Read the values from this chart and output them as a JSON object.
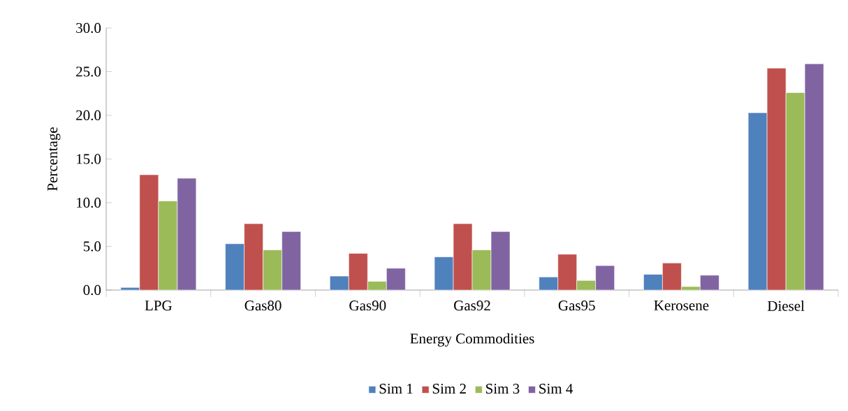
{
  "chart_data": {
    "type": "bar",
    "xlabel": "Energy Commodities",
    "ylabel": "Percentage",
    "categories": [
      "LPG",
      "Gas80",
      "Gas90",
      "Gas92",
      "Gas95",
      "Kerosene",
      "Diesel"
    ],
    "series": [
      {
        "name": "Sim 1",
        "color": "#4f81bd",
        "values": [
          0.3,
          5.3,
          1.6,
          3.8,
          1.5,
          1.8,
          20.3
        ]
      },
      {
        "name": "Sim 2",
        "color": "#c0504d",
        "values": [
          13.2,
          7.6,
          4.2,
          7.6,
          4.1,
          3.1,
          25.4
        ]
      },
      {
        "name": "Sim 3",
        "color": "#9bbb59",
        "values": [
          10.2,
          4.6,
          1.0,
          4.6,
          1.1,
          0.4,
          22.6
        ]
      },
      {
        "name": "Sim 4",
        "color": "#8064a2",
        "values": [
          12.8,
          6.7,
          2.5,
          6.7,
          2.8,
          1.7,
          25.9
        ]
      }
    ],
    "ylim": [
      0,
      30
    ],
    "yticks": [
      {
        "value": 0,
        "label": "0.0"
      },
      {
        "value": 5,
        "label": "5.0"
      },
      {
        "value": 10,
        "label": "10.0"
      },
      {
        "value": 15,
        "label": "15.0"
      },
      {
        "value": 20,
        "label": "20.0"
      },
      {
        "value": 25,
        "label": "25.0"
      },
      {
        "value": 30,
        "label": "30.0"
      }
    ],
    "legend": "bottom",
    "grid": false
  }
}
